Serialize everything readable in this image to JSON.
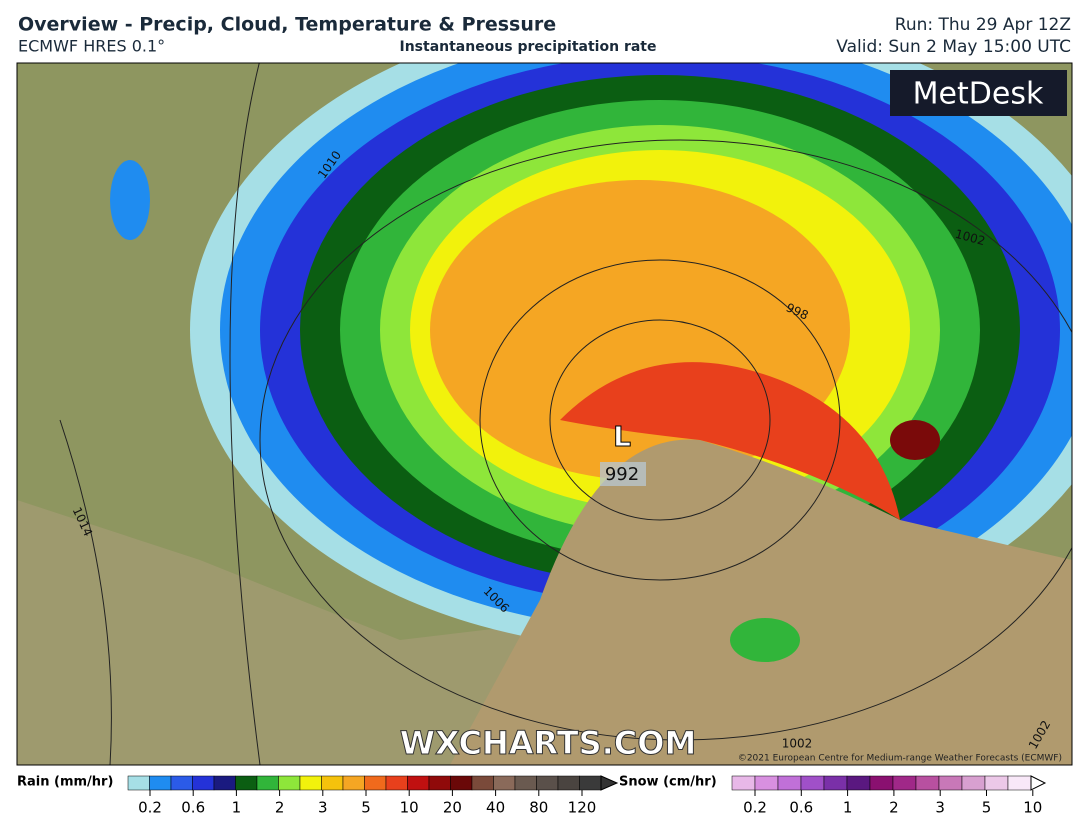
{
  "header": {
    "title": "Overview - Precip, Cloud, Temperature & Pressure",
    "model": "ECMWF HRES 0.1°",
    "subtitle": "Instantaneous precipitation rate",
    "run": "Run: Thu 29 Apr 12Z",
    "valid": "Valid: Sun 2 May 15:00 UTC"
  },
  "map": {
    "logo": "MetDesk",
    "watermark": "WXCHARTS.COM",
    "copyright": "©2021 European Centre for Medium-range Weather Forecasts (ECMWF)",
    "low": {
      "symbol": "L",
      "pressure": 992
    },
    "isobar_labels": [
      1010,
      1014,
      1006,
      1002,
      998,
      1002,
      1002
    ]
  },
  "legend": {
    "rain": {
      "label": "Rain (mm/hr)",
      "ticks": [
        0.2,
        0.6,
        1,
        2,
        3,
        5,
        10,
        20,
        40,
        80,
        120
      ]
    },
    "snow": {
      "label": "Snow (cm/hr)",
      "ticks": [
        0.2,
        0.6,
        1,
        2,
        3,
        5,
        10
      ]
    }
  }
}
